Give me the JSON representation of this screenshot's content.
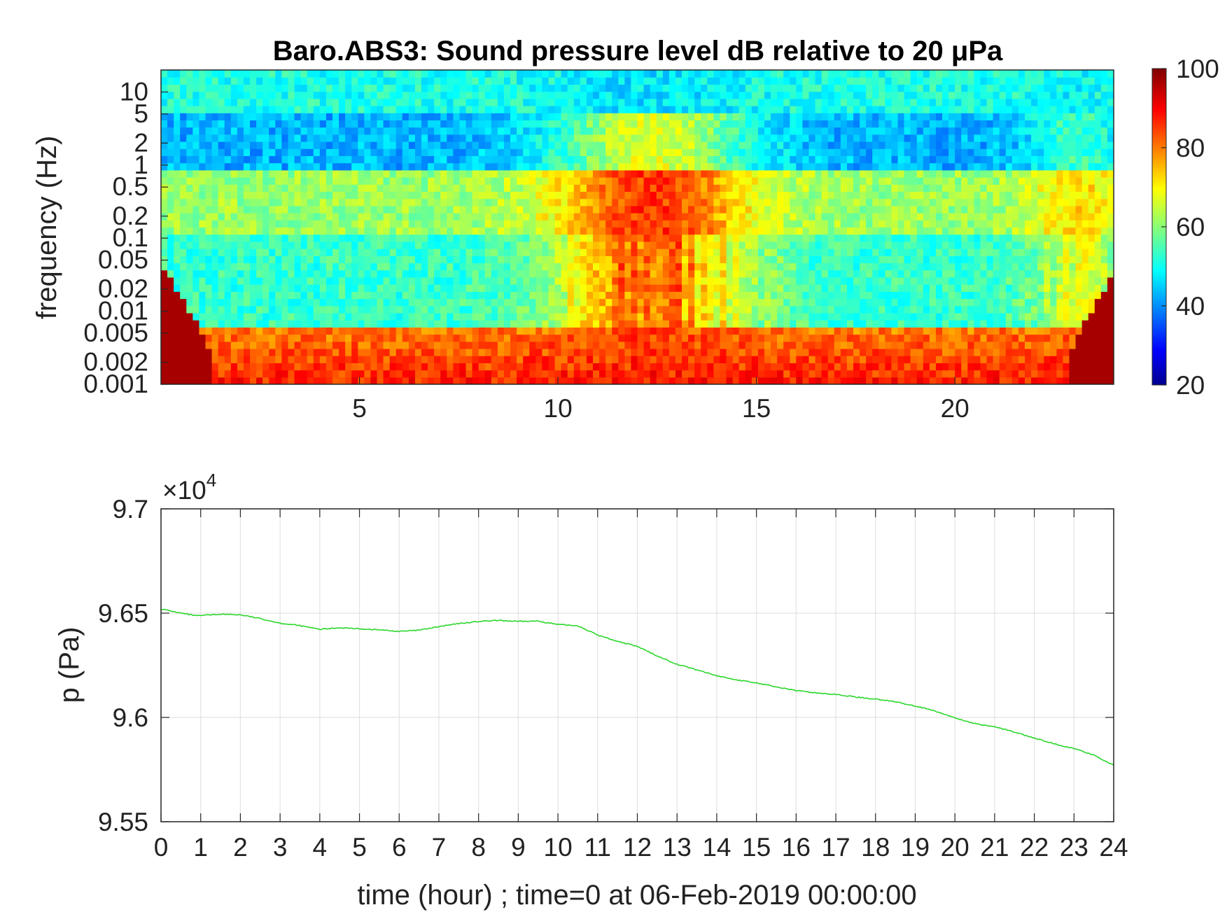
{
  "chart_data": [
    {
      "type": "heatmap",
      "title": "Baro.ABS3: Sound pressure level dB relative to 20 μPa",
      "ylabel": "frequency (Hz)",
      "yscale": "log",
      "ylim": [
        0.001,
        20
      ],
      "xlim": [
        0,
        24
      ],
      "yticks": [
        "0.001",
        "0.002",
        "0.005",
        "0.01",
        "0.02",
        "0.05",
        "0.1",
        "0.2",
        "0.5",
        "1",
        "2",
        "5",
        "10"
      ],
      "xticks": [
        "5",
        "10",
        "15",
        "20"
      ],
      "colorbar": {
        "min": 20,
        "max": 100,
        "ticks": [
          "20",
          "40",
          "60",
          "80",
          "100"
        ],
        "colormap": "jet"
      },
      "description_levels": {
        "band_above_5Hz_dB": 52,
        "band_1_to_5Hz_quiet_dB": 44,
        "active_hours": [
          9,
          14
        ],
        "peak_activity_dB": 90,
        "low_frequency_floor_dB": 88
      }
    },
    {
      "type": "line",
      "xlabel": "time (hour) ; time=0 at 06-Feb-2019 00:00:00",
      "ylabel": "p (Pa)",
      "exponent_label": "×10",
      "exponent_power": "4",
      "ylim": [
        95500,
        97000
      ],
      "xlim": [
        0,
        24
      ],
      "yticks": [
        "9.55",
        "9.6",
        "9.65",
        "9.7"
      ],
      "xticks": [
        "0",
        "1",
        "2",
        "3",
        "4",
        "5",
        "6",
        "7",
        "8",
        "9",
        "10",
        "11",
        "12",
        "13",
        "14",
        "15",
        "16",
        "17",
        "18",
        "19",
        "20",
        "21",
        "22",
        "23",
        "24"
      ],
      "grid": true,
      "series": [
        {
          "color": "#2bd62b",
          "x": [
            0,
            0.5,
            0.9,
            1.5,
            2.0,
            2.5,
            3.0,
            3.5,
            4.0,
            4.5,
            5.0,
            5.5,
            6.0,
            6.5,
            7.0,
            7.5,
            8.0,
            8.5,
            9.0,
            9.5,
            10.0,
            10.5,
            11.0,
            11.5,
            12.0,
            12.5,
            13.0,
            13.5,
            14.0,
            14.5,
            15.0,
            15.5,
            16.0,
            16.5,
            17.0,
            17.5,
            18.0,
            18.5,
            19.0,
            19.5,
            20.0,
            20.5,
            21.0,
            21.5,
            22.0,
            22.5,
            23.0,
            23.5,
            24.0
          ],
          "y": [
            96520,
            96500,
            96487,
            96495,
            96492,
            96474,
            96452,
            96440,
            96422,
            96430,
            96425,
            96420,
            96412,
            96418,
            96435,
            96450,
            96460,
            96465,
            96460,
            96462,
            96445,
            96440,
            96395,
            96365,
            96340,
            96295,
            96255,
            96228,
            96200,
            96180,
            96165,
            96148,
            96128,
            96118,
            96110,
            96098,
            96088,
            96075,
            96055,
            96030,
            95998,
            95970,
            95955,
            95930,
            95900,
            95875,
            95850,
            95820,
            95770
          ]
        }
      ]
    }
  ]
}
